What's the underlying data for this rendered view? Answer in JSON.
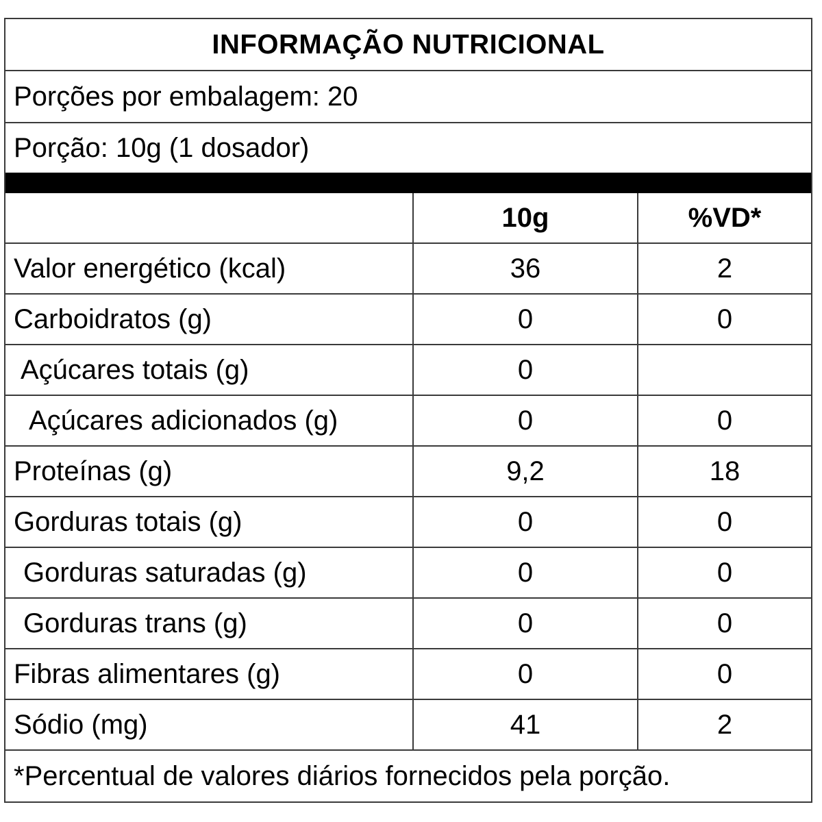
{
  "label": {
    "title": "INFORMAÇÃO NUTRICIONAL",
    "servings_per_package": "Porções por embalagem: 20",
    "serving_size": "Porção: 10g (1 dosador)",
    "table": {
      "headers": [
        "",
        "10g",
        "%VD*"
      ],
      "rows": [
        {
          "name": "Valor energético (kcal)",
          "amount": "36",
          "dv": "2"
        },
        {
          "name": "Carboidratos (g)",
          "amount": "0",
          "dv": "0"
        },
        {
          "name": "Açúcares totais (g)",
          "amount": "0",
          "dv": ""
        },
        {
          "name": "Açúcares adicionados (g)",
          "amount": "0",
          "dv": "0"
        },
        {
          "name": "Proteínas (g)",
          "amount": "9,2",
          "dv": "18"
        },
        {
          "name": "Gorduras totais (g)",
          "amount": "0",
          "dv": "0"
        },
        {
          "name": "Gorduras saturadas (g)",
          "amount": "0",
          "dv": "0"
        },
        {
          "name": "Gorduras trans (g)",
          "amount": "0",
          "dv": "0"
        },
        {
          "name": "Fibras alimentares (g)",
          "amount": "0",
          "dv": "0"
        },
        {
          "name": "Sódio (mg)",
          "amount": "41",
          "dv": "2"
        }
      ]
    },
    "footnote": "*Percentual de valores diários fornecidos pela porção."
  }
}
